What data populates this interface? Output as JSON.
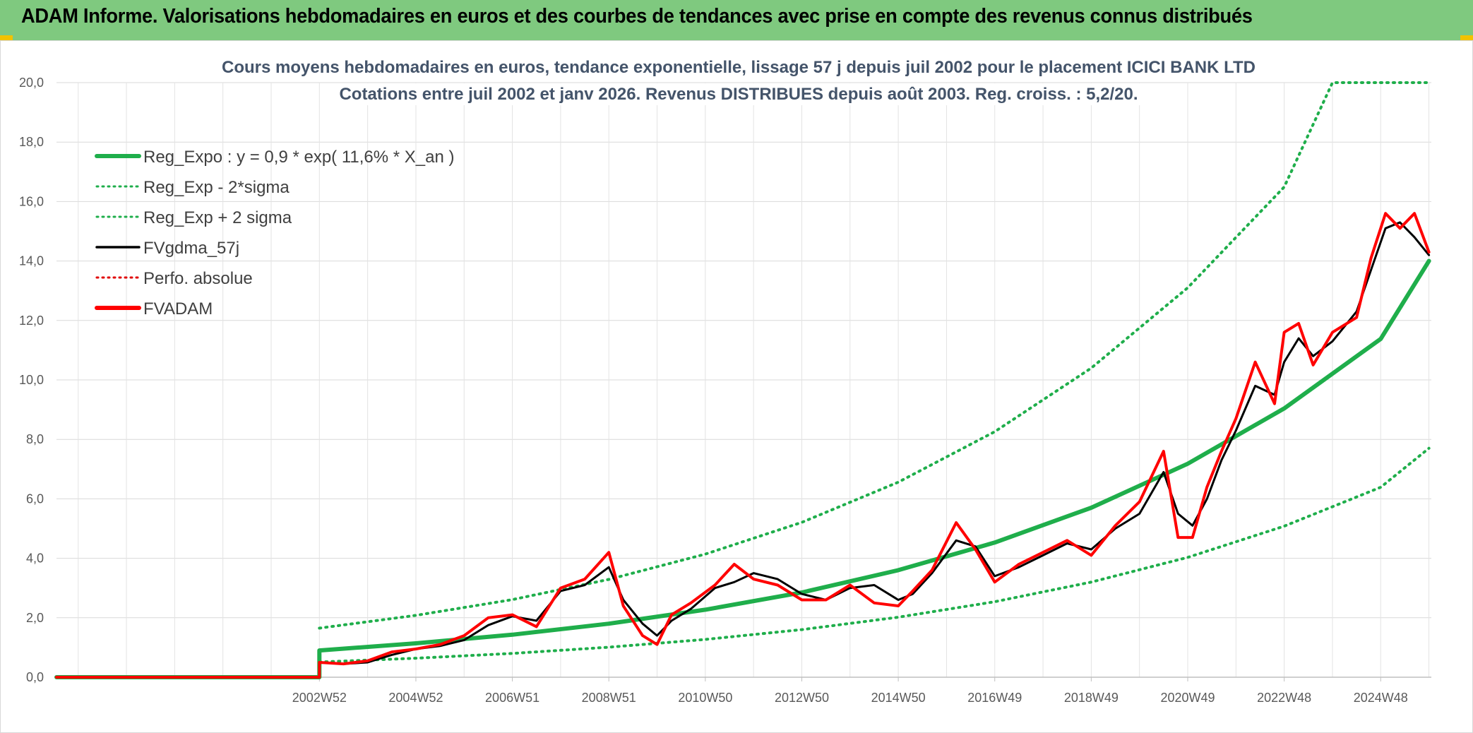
{
  "banner": {
    "title": "ADAM Informe. Valorisations hebdomadaires en euros et des courbes de tendances avec prise en compte des revenus connus distribués"
  },
  "colors": {
    "banner_bg": "#7fc97f",
    "reg_expo": "#1fae4b",
    "sigma": "#1fae4b",
    "fvgdma": "#000000",
    "perfo": "#e00000",
    "fvadam": "#ff0000"
  },
  "chart_data": {
    "type": "line",
    "title_line1": "Cours moyens hebdomadaires en euros, tendance exponentielle, lissage 57 j depuis juil 2002 pour le placement ICICI BANK LTD",
    "title_line2": "Cotations entre juil 2002 et janv 2026. Revenus DISTRIBUES depuis août 2003. Reg. croiss. : 5,2/20.",
    "xlabel": "",
    "ylabel": "",
    "ylim": [
      0,
      20
    ],
    "xlim": [
      1997.55,
      2026.05
    ],
    "y_ticks": [
      "0,0",
      "2,0",
      "4,0",
      "6,0",
      "8,0",
      "10,0",
      "12,0",
      "14,0",
      "16,0",
      "18,0",
      "20,0"
    ],
    "x_ticks": [
      {
        "label": "2002W52",
        "x": 2003.0
      },
      {
        "label": "2004W52",
        "x": 2005.0
      },
      {
        "label": "2006W51",
        "x": 2007.0
      },
      {
        "label": "2008W51",
        "x": 2009.0
      },
      {
        "label": "2010W50",
        "x": 2011.0
      },
      {
        "label": "2012W50",
        "x": 2013.0
      },
      {
        "label": "2014W50",
        "x": 2015.0
      },
      {
        "label": "2016W49",
        "x": 2017.0
      },
      {
        "label": "2018W49",
        "x": 2019.0
      },
      {
        "label": "2020W49",
        "x": 2021.0
      },
      {
        "label": "2022W48",
        "x": 2023.0
      },
      {
        "label": "2024W48",
        "x": 2025.0
      }
    ],
    "legend": [
      {
        "label": "Reg_Expo : y = 0,9 * exp( 11,6% *  X_an )",
        "key": "reg_expo",
        "style": "solid-thick"
      },
      {
        "label": "Reg_Exp - 2*sigma",
        "key": "reg_minus",
        "style": "dotted"
      },
      {
        "label": "Reg_Exp + 2 sigma",
        "key": "reg_plus",
        "style": "dotted"
      },
      {
        "label": "FVgdma_57j",
        "key": "fvgdma",
        "style": "solid"
      },
      {
        "label": "Perfo. absolue",
        "key": "perfo",
        "style": "dotted"
      },
      {
        "label": "FVADAM",
        "key": "fvadam",
        "style": "solid-thick"
      }
    ],
    "series": [
      {
        "name": "Reg_Expo : y = 0,9 * exp( 11,6% *  X_an )",
        "points": [
          [
            1997.55,
            0.0
          ],
          [
            2003.0,
            0.0
          ],
          [
            2003.0,
            0.9
          ],
          [
            2005.0,
            1.14
          ],
          [
            2007.0,
            1.43
          ],
          [
            2009.0,
            1.8
          ],
          [
            2011.0,
            2.27
          ],
          [
            2013.0,
            2.85
          ],
          [
            2015.0,
            3.6
          ],
          [
            2017.0,
            4.53
          ],
          [
            2019.0,
            5.7
          ],
          [
            2021.0,
            7.18
          ],
          [
            2023.0,
            9.04
          ],
          [
            2025.0,
            11.38
          ],
          [
            2026.0,
            14.0
          ]
        ]
      },
      {
        "name": "Reg_Exp - 2*sigma",
        "points": [
          [
            2003.0,
            0.51
          ],
          [
            2005.0,
            0.64
          ],
          [
            2007.0,
            0.8
          ],
          [
            2009.0,
            1.01
          ],
          [
            2011.0,
            1.27
          ],
          [
            2013.0,
            1.6
          ],
          [
            2015.0,
            2.02
          ],
          [
            2017.0,
            2.54
          ],
          [
            2019.0,
            3.2
          ],
          [
            2021.0,
            4.03
          ],
          [
            2023.0,
            5.08
          ],
          [
            2025.0,
            6.39
          ],
          [
            2026.0,
            7.7
          ]
        ]
      },
      {
        "name": "Reg_Exp + 2 sigma",
        "points": [
          [
            2003.0,
            1.65
          ],
          [
            2005.0,
            2.08
          ],
          [
            2007.0,
            2.61
          ],
          [
            2009.0,
            3.29
          ],
          [
            2011.0,
            4.14
          ],
          [
            2013.0,
            5.21
          ],
          [
            2015.0,
            6.56
          ],
          [
            2017.0,
            8.26
          ],
          [
            2019.0,
            10.4
          ],
          [
            2021.0,
            13.1
          ],
          [
            2023.0,
            16.49
          ],
          [
            2024.0,
            20.0
          ],
          [
            2026.0,
            20.0
          ]
        ]
      },
      {
        "name": "FVgdma_57j",
        "points": [
          [
            1997.55,
            0.0
          ],
          [
            2003.0,
            0.0
          ],
          [
            2003.0,
            0.5
          ],
          [
            2003.5,
            0.45
          ],
          [
            2004.0,
            0.5
          ],
          [
            2004.5,
            0.75
          ],
          [
            2005.0,
            0.95
          ],
          [
            2005.5,
            1.05
          ],
          [
            2006.0,
            1.25
          ],
          [
            2006.5,
            1.75
          ],
          [
            2007.0,
            2.05
          ],
          [
            2007.5,
            1.9
          ],
          [
            2008.0,
            2.9
          ],
          [
            2008.5,
            3.1
          ],
          [
            2009.0,
            3.7
          ],
          [
            2009.3,
            2.6
          ],
          [
            2009.7,
            1.8
          ],
          [
            2010.0,
            1.4
          ],
          [
            2010.3,
            1.9
          ],
          [
            2010.7,
            2.3
          ],
          [
            2011.2,
            3.0
          ],
          [
            2011.6,
            3.2
          ],
          [
            2012.0,
            3.5
          ],
          [
            2012.5,
            3.3
          ],
          [
            2013.0,
            2.8
          ],
          [
            2013.5,
            2.6
          ],
          [
            2014.0,
            3.0
          ],
          [
            2014.5,
            3.1
          ],
          [
            2015.0,
            2.6
          ],
          [
            2015.3,
            2.8
          ],
          [
            2015.7,
            3.5
          ],
          [
            2016.2,
            4.6
          ],
          [
            2016.6,
            4.4
          ],
          [
            2017.0,
            3.4
          ],
          [
            2017.5,
            3.7
          ],
          [
            2018.0,
            4.1
          ],
          [
            2018.5,
            4.5
          ],
          [
            2019.0,
            4.3
          ],
          [
            2019.5,
            5.0
          ],
          [
            2020.0,
            5.5
          ],
          [
            2020.5,
            6.9
          ],
          [
            2020.8,
            5.5
          ],
          [
            2021.1,
            5.1
          ],
          [
            2021.4,
            6.0
          ],
          [
            2021.7,
            7.3
          ],
          [
            2022.0,
            8.3
          ],
          [
            2022.4,
            9.8
          ],
          [
            2022.8,
            9.5
          ],
          [
            2023.0,
            10.6
          ],
          [
            2023.3,
            11.4
          ],
          [
            2023.6,
            10.8
          ],
          [
            2024.0,
            11.3
          ],
          [
            2024.5,
            12.3
          ],
          [
            2024.8,
            13.7
          ],
          [
            2025.1,
            15.1
          ],
          [
            2025.4,
            15.3
          ],
          [
            2025.7,
            14.8
          ],
          [
            2026.0,
            14.2
          ]
        ]
      },
      {
        "name": "FVADAM",
        "points": [
          [
            1997.55,
            0.0
          ],
          [
            2003.0,
            0.0
          ],
          [
            2003.0,
            0.5
          ],
          [
            2003.5,
            0.45
          ],
          [
            2004.0,
            0.55
          ],
          [
            2004.5,
            0.85
          ],
          [
            2005.0,
            0.95
          ],
          [
            2005.5,
            1.1
          ],
          [
            2006.0,
            1.4
          ],
          [
            2006.5,
            2.0
          ],
          [
            2007.0,
            2.1
          ],
          [
            2007.5,
            1.7
          ],
          [
            2008.0,
            3.0
          ],
          [
            2008.5,
            3.3
          ],
          [
            2009.0,
            4.2
          ],
          [
            2009.3,
            2.4
          ],
          [
            2009.7,
            1.4
          ],
          [
            2010.0,
            1.1
          ],
          [
            2010.3,
            2.1
          ],
          [
            2010.7,
            2.5
          ],
          [
            2011.2,
            3.1
          ],
          [
            2011.6,
            3.8
          ],
          [
            2012.0,
            3.3
          ],
          [
            2012.5,
            3.1
          ],
          [
            2013.0,
            2.6
          ],
          [
            2013.5,
            2.6
          ],
          [
            2014.0,
            3.1
          ],
          [
            2014.5,
            2.5
          ],
          [
            2015.0,
            2.4
          ],
          [
            2015.3,
            2.9
          ],
          [
            2015.7,
            3.6
          ],
          [
            2016.2,
            5.2
          ],
          [
            2016.6,
            4.3
          ],
          [
            2017.0,
            3.2
          ],
          [
            2017.5,
            3.8
          ],
          [
            2018.0,
            4.2
          ],
          [
            2018.5,
            4.6
          ],
          [
            2019.0,
            4.1
          ],
          [
            2019.5,
            5.1
          ],
          [
            2020.0,
            5.9
          ],
          [
            2020.5,
            7.6
          ],
          [
            2020.8,
            4.7
          ],
          [
            2021.1,
            4.7
          ],
          [
            2021.4,
            6.4
          ],
          [
            2021.7,
            7.6
          ],
          [
            2022.0,
            8.7
          ],
          [
            2022.4,
            10.6
          ],
          [
            2022.8,
            9.2
          ],
          [
            2023.0,
            11.6
          ],
          [
            2023.3,
            11.9
          ],
          [
            2023.6,
            10.5
          ],
          [
            2024.0,
            11.6
          ],
          [
            2024.5,
            12.1
          ],
          [
            2024.8,
            14.1
          ],
          [
            2025.1,
            15.6
          ],
          [
            2025.4,
            15.1
          ],
          [
            2025.7,
            15.6
          ],
          [
            2026.0,
            14.3
          ]
        ]
      }
    ]
  }
}
